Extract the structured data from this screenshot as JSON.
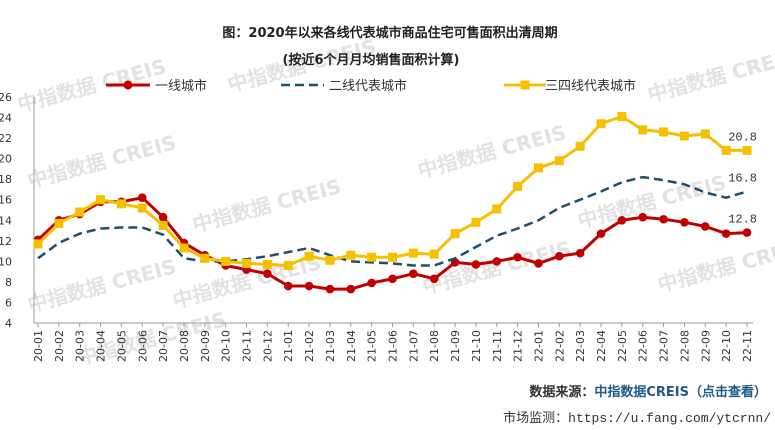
{
  "chart_data": {
    "type": "line",
    "title": "图：2020年以来各线代表城市商品住宅可售面积出清周期",
    "subtitle": "(按近6个月月均销售面积计算)",
    "xlabel": "",
    "ylabel": "",
    "ylim": [
      4,
      26
    ],
    "yticks": [
      "4",
      "6",
      "8",
      "10",
      "12",
      "14",
      "16",
      "18",
      "20",
      "22",
      "24",
      "26"
    ],
    "categories": [
      "20-01",
      "20-02",
      "20-03",
      "20-04",
      "20-05",
      "20-06",
      "20-07",
      "20-08",
      "20-09",
      "20-10",
      "20-11",
      "20-12",
      "21-01",
      "21-02",
      "21-03",
      "21-04",
      "21-05",
      "21-06",
      "21-07",
      "21-08",
      "21-09",
      "21-10",
      "21-11",
      "21-12",
      "22-01",
      "22-02",
      "22-03",
      "22-04",
      "22-05",
      "22-06",
      "22-07",
      "22-08",
      "22-09",
      "22-10",
      "22-11"
    ],
    "series": [
      {
        "name": "一线城市",
        "color": "#c00000",
        "style": "solid-circle",
        "values": [
          12.1,
          14.0,
          14.6,
          15.8,
          15.8,
          16.2,
          14.3,
          11.8,
          10.6,
          9.6,
          9.2,
          8.8,
          7.6,
          7.6,
          7.3,
          7.3,
          7.9,
          8.3,
          8.8,
          8.3,
          9.9,
          9.7,
          10.0,
          10.4,
          9.8,
          10.5,
          10.8,
          12.7,
          14.0,
          14.3,
          14.1,
          13.8,
          13.4,
          12.7,
          12.8
        ]
      },
      {
        "name": "二线代表城市",
        "color": "#1f4e6e",
        "style": "dashed",
        "values": [
          10.3,
          11.8,
          12.7,
          13.2,
          13.3,
          13.3,
          12.6,
          10.3,
          10.0,
          10.0,
          10.2,
          10.5,
          10.9,
          11.3,
          10.6,
          10.0,
          9.9,
          9.8,
          9.6,
          9.6,
          10.3,
          11.4,
          12.5,
          13.2,
          14.0,
          15.2,
          16.0,
          16.8,
          17.7,
          18.2,
          17.9,
          17.5,
          16.7,
          16.2,
          16.8
        ]
      },
      {
        "name": "三四线代表城市",
        "color": "#f5c000",
        "style": "solid-square",
        "values": [
          11.7,
          13.7,
          14.8,
          16.0,
          15.6,
          15.2,
          13.5,
          11.3,
          10.3,
          10.0,
          9.8,
          9.7,
          9.6,
          10.5,
          10.1,
          10.6,
          10.4,
          10.4,
          10.8,
          10.7,
          12.7,
          13.8,
          15.1,
          17.3,
          19.1,
          19.8,
          21.2,
          23.4,
          24.1,
          22.8,
          22.6,
          22.2,
          22.4,
          20.8,
          20.8
        ]
      }
    ],
    "end_labels": [
      "12.8",
      "16.8",
      "20.8"
    ],
    "legend_position": "top"
  },
  "watermark_text": "中指数据 CREIS",
  "footer": {
    "source_prefix": "数据来源：",
    "source_link": "中指数据CREIS（点击查看）",
    "monitor_prefix": "市场监测：",
    "monitor_url": "https://u.fang.com/ytcrnn/"
  }
}
